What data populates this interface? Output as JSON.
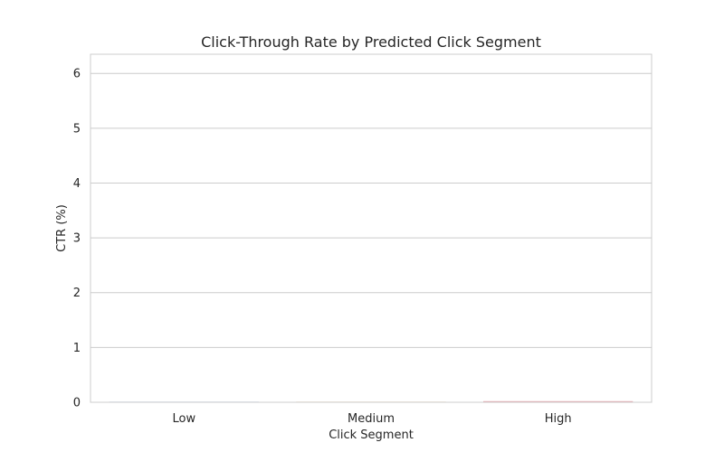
{
  "chart_data": {
    "type": "bar",
    "title": "Click-Through Rate by Predicted Click Segment",
    "xlabel": "Click Segment",
    "ylabel": "CTR (%)",
    "categories": [
      "Low",
      "Medium",
      "High"
    ],
    "values": [
      0.0,
      0.0,
      0.02
    ],
    "bar_colors": [
      "#8fa8d8",
      "#f0b27a",
      "#e8a0a8"
    ],
    "ylim": [
      0,
      6.35
    ],
    "yticks": [
      "0",
      "1",
      "2",
      "3",
      "4",
      "5",
      "6"
    ],
    "grid": "horizontal",
    "legend": "none"
  }
}
